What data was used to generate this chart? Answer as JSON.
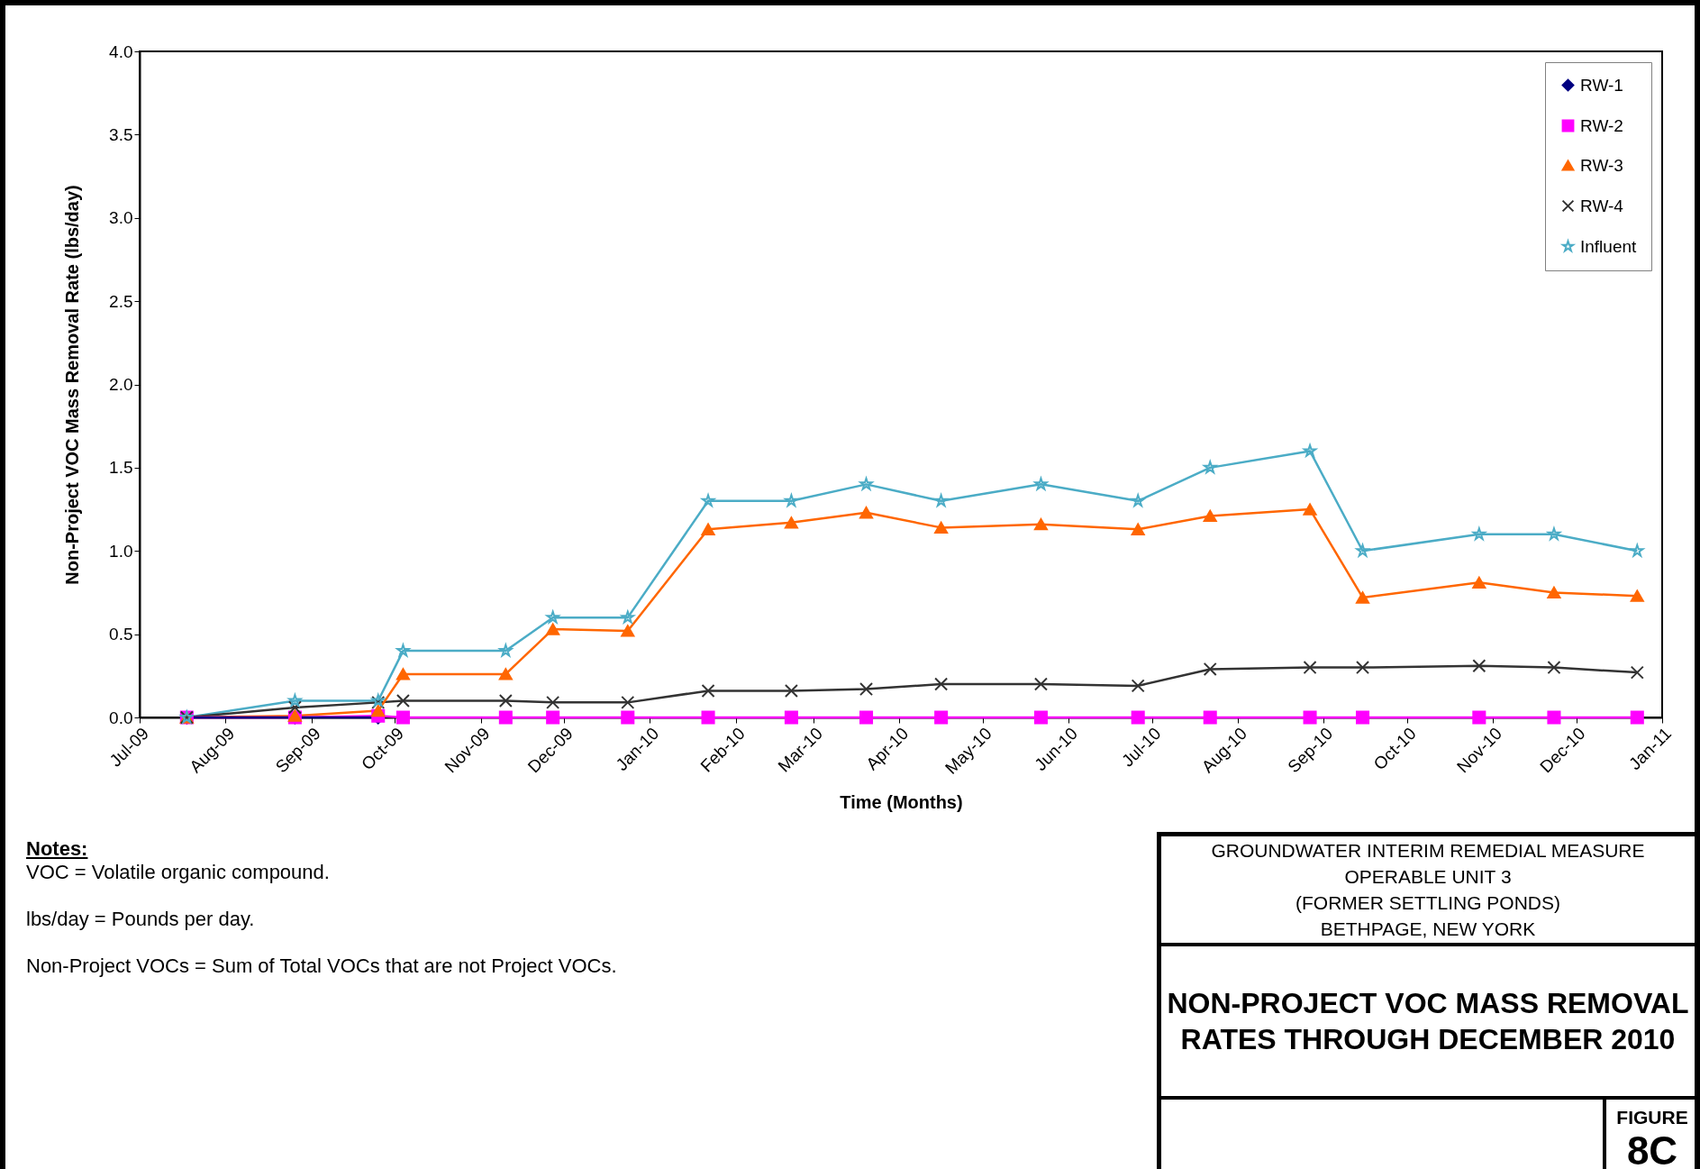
{
  "chart_data": {
    "type": "line",
    "title": "NON-PROJECT VOC MASS REMOVAL RATES THROUGH DECEMBER 2010",
    "xlabel": "Time (Months)",
    "ylabel": "Non-Project VOC Mass Removal Rate (lbs/day)",
    "x": [
      "2009-07-18",
      "2009-08-26",
      "2009-09-25",
      "2009-10-04",
      "2009-11-10",
      "2009-11-27",
      "2009-12-24",
      "2010-01-22",
      "2010-02-21",
      "2010-03-20",
      "2010-04-16",
      "2010-05-22",
      "2010-06-26",
      "2010-07-22",
      "2010-08-27",
      "2010-09-15",
      "2010-10-27",
      "2010-11-23",
      "2010-12-23"
    ],
    "series": [
      {
        "name": "RW-1",
        "color": "#000080",
        "marker": "diamond",
        "values": [
          0,
          0,
          0,
          null,
          null,
          null,
          null,
          null,
          null,
          null,
          null,
          null,
          null,
          null,
          null,
          null,
          null,
          null,
          null
        ]
      },
      {
        "name": "RW-2",
        "color": "#ff00ff",
        "marker": "square",
        "values": [
          0,
          0,
          0.01,
          0,
          0,
          0,
          0,
          0,
          0,
          0,
          0,
          0,
          0,
          0,
          0,
          0,
          0,
          0,
          0
        ]
      },
      {
        "name": "RW-3",
        "color": "#ff6600",
        "marker": "triangle",
        "values": [
          0,
          0.01,
          0.04,
          0.26,
          0.26,
          0.53,
          0.52,
          1.13,
          1.17,
          1.23,
          1.14,
          1.16,
          1.13,
          1.21,
          1.25,
          0.72,
          0.81,
          0.75,
          0.73
        ]
      },
      {
        "name": "RW-4",
        "color": "#333333",
        "marker": "cross",
        "values": [
          0,
          0.06,
          0.09,
          0.1,
          0.1,
          0.09,
          0.09,
          0.16,
          0.16,
          0.17,
          0.2,
          0.2,
          0.19,
          0.29,
          0.3,
          0.3,
          0.31,
          0.3,
          0.27
        ]
      },
      {
        "name": "Influent",
        "color": "#4bacc6",
        "marker": "star",
        "values": [
          0,
          0.1,
          0.1,
          0.4,
          0.4,
          0.6,
          0.6,
          1.3,
          1.3,
          1.4,
          1.3,
          1.4,
          1.3,
          1.5,
          1.6,
          1.0,
          1.1,
          1.1,
          1.0
        ]
      }
    ],
    "xlim": [
      "2009-07",
      "2011-01"
    ],
    "xticks": [
      {
        "value": "2009-07",
        "label": "Jul-09"
      },
      {
        "value": "2009-08",
        "label": "Aug-09"
      },
      {
        "value": "2009-09",
        "label": "Sep-09"
      },
      {
        "value": "2009-10",
        "label": "Oct-09"
      },
      {
        "value": "2009-11",
        "label": "Nov-09"
      },
      {
        "value": "2009-12",
        "label": "Dec-09"
      },
      {
        "value": "2010-01",
        "label": "Jan-10"
      },
      {
        "value": "2010-02",
        "label": "Feb-10"
      },
      {
        "value": "2010-03",
        "label": "Mar-10"
      },
      {
        "value": "2010-04",
        "label": "Apr-10"
      },
      {
        "value": "2010-05",
        "label": "May-10"
      },
      {
        "value": "2010-06",
        "label": "Jun-10"
      },
      {
        "value": "2010-07",
        "label": "Jul-10"
      },
      {
        "value": "2010-08",
        "label": "Aug-10"
      },
      {
        "value": "2010-09",
        "label": "Sep-10"
      },
      {
        "value": "2010-10",
        "label": "Oct-10"
      },
      {
        "value": "2010-11",
        "label": "Nov-10"
      },
      {
        "value": "2010-12",
        "label": "Dec-10"
      },
      {
        "value": "2011-01",
        "label": "Jan-11"
      }
    ],
    "ylim": [
      0,
      4
    ],
    "yticks": [
      {
        "value": 0,
        "label": "0.0"
      },
      {
        "value": 0.5,
        "label": "0.5"
      },
      {
        "value": 1,
        "label": "1.0"
      },
      {
        "value": 1.5,
        "label": "1.5"
      },
      {
        "value": 2,
        "label": "2.0"
      },
      {
        "value": 2.5,
        "label": "2.5"
      },
      {
        "value": 3,
        "label": "3.0"
      },
      {
        "value": 3.5,
        "label": "3.5"
      },
      {
        "value": 4,
        "label": "4.0"
      }
    ],
    "grid": false,
    "legend": "top right",
    "annotations": [
      "Notes:",
      "VOC = Volatile organic compound.",
      "lbs/day = Pounds per day.",
      "Non-Project VOCs = Sum of Total VOCs that are not Project VOCs.",
      "GROUNDWATER INTERIM REMEDIAL MEASURE",
      "OPERABLE UNIT 3",
      "(FORMER SETTLING PONDS)",
      "BETHPAGE, NEW YORK",
      "FIGURE",
      "8C"
    ]
  }
}
